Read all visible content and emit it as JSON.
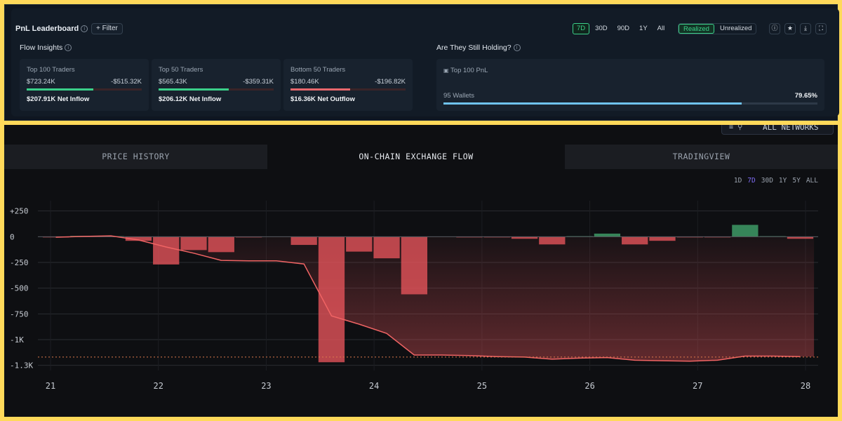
{
  "leaderboard": {
    "title": "PnL Leaderboard",
    "filter_label": "Filter",
    "ranges": [
      "7D",
      "30D",
      "90D",
      "1Y",
      "All"
    ],
    "active_range": "7D",
    "modes": [
      "Realized",
      "Unrealized"
    ],
    "active_mode": "Realized",
    "icons": [
      "info-icon",
      "star-icon",
      "download-icon",
      "fullscreen-icon"
    ]
  },
  "flow_insights": {
    "title": "Flow Insights",
    "cards": [
      {
        "title": "Top 100 Traders",
        "inflow": "$723.24K",
        "outflow": "-$515.32K",
        "fill": 0.58,
        "color": "#3bd08a",
        "net": "$207.91K Net Inflow"
      },
      {
        "title": "Top 50 Traders",
        "inflow": "$565.43K",
        "outflow": "-$359.31K",
        "fill": 0.61,
        "color": "#3bd08a",
        "net": "$206.12K Net Inflow"
      },
      {
        "title": "Bottom 50 Traders",
        "inflow": "$180.46K",
        "outflow": "-$196.82K",
        "fill": 0.52,
        "color": "#e8676d",
        "net": "$16.36K Net Outflow"
      }
    ]
  },
  "holding": {
    "title": "Are They Still Holding?",
    "card_title": "Top 100 PnL",
    "wallets": "95 Wallets",
    "percent": "79.65%",
    "fill": 0.7965
  },
  "network_badge": "ALL NETWORKS",
  "tabs": [
    "PRICE HISTORY",
    "ON-CHAIN EXCHANGE FLOW",
    "TRADINGVIEW"
  ],
  "active_tab": 1,
  "timeframes": [
    "1D",
    "7D",
    "30D",
    "1Y",
    "5Y",
    "ALL"
  ],
  "active_timeframe": "7D",
  "chart_data": {
    "type": "bar",
    "title": "",
    "xlabel": "",
    "ylabel": "",
    "x_ticks": [
      "21",
      "22",
      "23",
      "24",
      "25",
      "26",
      "27",
      "28"
    ],
    "y_ticks": [
      "+250",
      "0",
      "-250",
      "-500",
      "-750",
      "-1K",
      "-1.3K"
    ],
    "y_tick_values": [
      250,
      0,
      -250,
      -500,
      -750,
      -1000,
      -1250
    ],
    "ylim": [
      -1300,
      350
    ],
    "grid": true,
    "bar_values": [
      -5,
      8,
      5,
      -40,
      -270,
      -130,
      -150,
      -5,
      0,
      -80,
      -1220,
      -145,
      -210,
      -560,
      0,
      -5,
      -5,
      -20,
      -75,
      5,
      30,
      -75,
      -40,
      -5,
      -5,
      115,
      5,
      -20
    ],
    "cumulative": [
      -5,
      3,
      8,
      -32,
      -100,
      -160,
      -230,
      -235,
      -235,
      -265,
      -770,
      -850,
      -940,
      -1150,
      -1150,
      -1155,
      -1165,
      -1170,
      -1190,
      -1180,
      -1175,
      -1200,
      -1205,
      -1210,
      -1200,
      -1160,
      -1160,
      -1165
    ],
    "reference_line": -1170,
    "colors": {
      "negative": "#e8555b",
      "positive": "#3d9a66",
      "line": "#f06464"
    }
  }
}
